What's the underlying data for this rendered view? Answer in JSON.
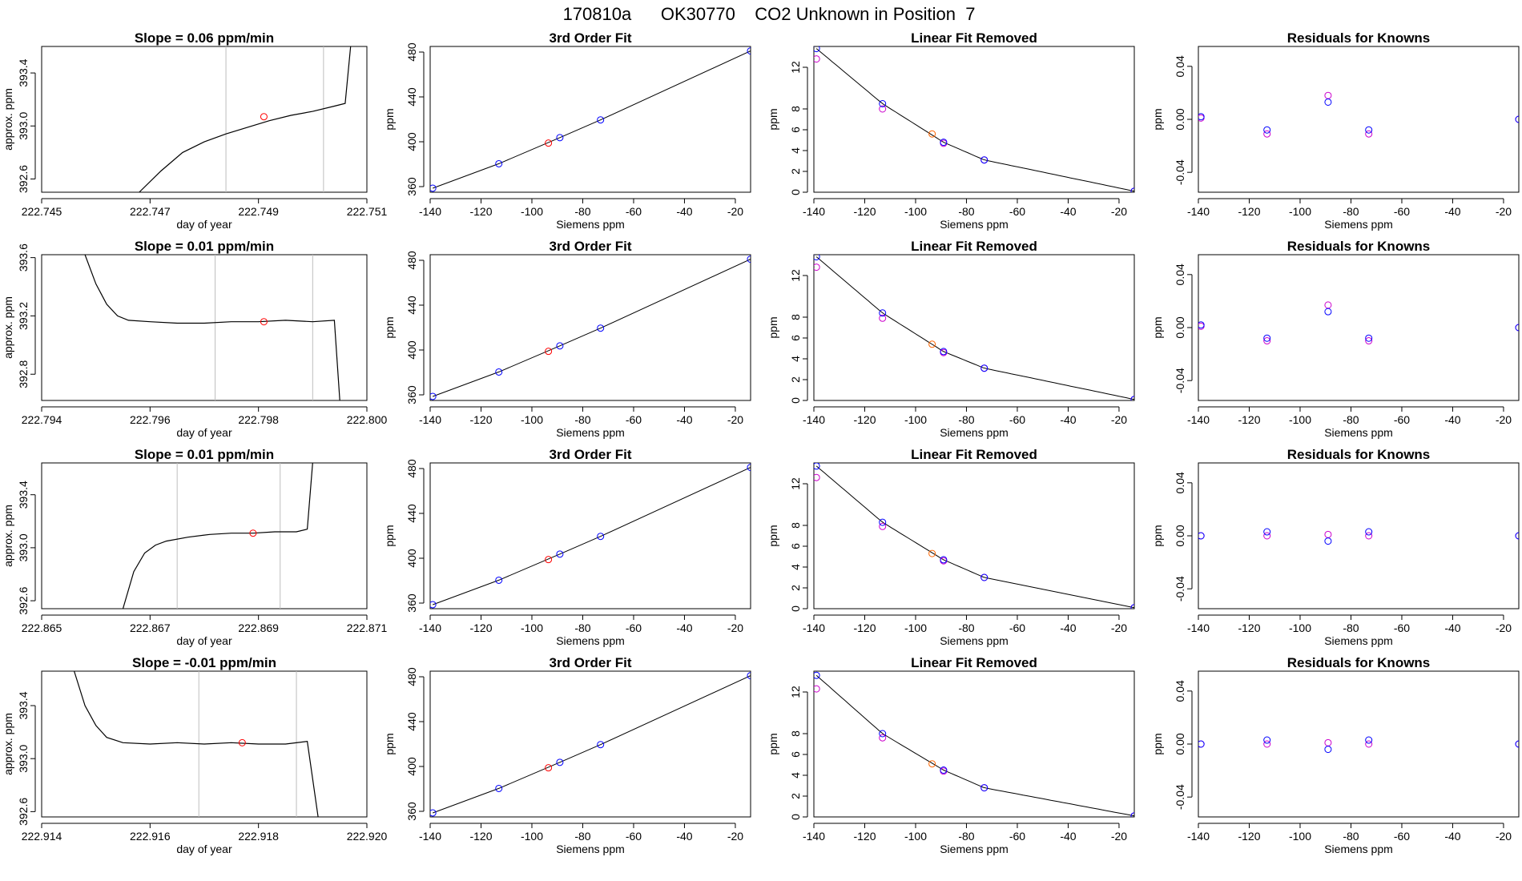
{
  "main_title": "170810a      OK30770    CO2 Unknown in Position  7",
  "colors": {
    "known": "#0000ff",
    "fitted": "#cc00cc",
    "unknown_fit": "#ff0000",
    "unknown_lin": "#ff6600",
    "gray": "#bebebe",
    "trace": "#000000"
  },
  "chart_data": [
    {
      "type": "line",
      "row": 0,
      "col": 0,
      "title": "Slope =  0.06  ppm/min",
      "xlabel": "day of year",
      "ylabel": "approx. ppm",
      "xlim": [
        222.745,
        222.751
      ],
      "ylim": [
        392.5,
        393.6
      ],
      "xticks": [
        222.745,
        222.747,
        222.749,
        222.751
      ],
      "xticklabels": [
        "222.745",
        "222.747",
        "222.749",
        "222.751"
      ],
      "yticks": [
        392.6,
        393.0,
        393.4
      ],
      "yticklabels": [
        "392.6",
        "393.0",
        "393.4"
      ],
      "vlines": [
        222.7484,
        222.7502
      ],
      "trace": [
        [
          222.7468,
          392.5
        ],
        [
          222.7472,
          392.66
        ],
        [
          222.7476,
          392.8
        ],
        [
          222.748,
          392.88
        ],
        [
          222.7484,
          392.94
        ],
        [
          222.7488,
          392.99
        ],
        [
          222.7492,
          393.04
        ],
        [
          222.7496,
          393.08
        ],
        [
          222.75,
          393.11
        ],
        [
          222.7504,
          393.15
        ],
        [
          222.7506,
          393.17
        ],
        [
          222.7507,
          393.6
        ]
      ],
      "marker": [
        222.7491,
        393.07
      ]
    },
    {
      "type": "scatter",
      "row": 0,
      "col": 1,
      "title": "3rd Order Fit",
      "xlabel": "Siemens ppm",
      "ylabel": "ppm",
      "xlim": [
        -140,
        -14
      ],
      "ylim": [
        355,
        485
      ],
      "xticks": [
        -140,
        -120,
        -100,
        -80,
        -60,
        -40,
        -20
      ],
      "yticks": [
        360,
        400,
        440,
        480
      ],
      "knowns_x": [
        -139.0,
        -113.0,
        -89.0,
        -73.0,
        -14.0
      ],
      "knowns_y": [
        358.6,
        380.4,
        403.7,
        419.5,
        481.0
      ],
      "unknown": [
        -93.5,
        398.8
      ]
    },
    {
      "type": "scatter",
      "row": 0,
      "col": 2,
      "title": "Linear Fit Removed",
      "xlabel": "Siemens ppm",
      "ylabel": "ppm",
      "xlim": [
        -140,
        -14
      ],
      "ylim": [
        0,
        14
      ],
      "xticks": [
        -140,
        -120,
        -100,
        -80,
        -60,
        -40,
        -20
      ],
      "yticks": [
        0,
        2,
        4,
        6,
        8,
        12
      ],
      "knowns_x": [
        -139.0,
        -113.0,
        -89.0,
        -73.0,
        -14.0
      ],
      "knowns_y": [
        13.8,
        8.5,
        4.8,
        3.1,
        0.1
      ],
      "fitted_y": [
        12.8,
        8.0,
        4.7,
        3.1,
        0.1
      ],
      "unknown": [
        -93.5,
        5.6
      ]
    },
    {
      "type": "scatter",
      "row": 0,
      "col": 3,
      "title": "Residuals for Knowns",
      "xlabel": "Siemens ppm",
      "ylabel": "ppm",
      "xlim": [
        -140,
        -14
      ],
      "ylim": [
        -0.055,
        0.055
      ],
      "xticks": [
        -140,
        -120,
        -100,
        -80,
        -60,
        -40,
        -20
      ],
      "yticks": [
        -0.04,
        0.0,
        0.04
      ],
      "yticklabels": [
        "-0.04",
        "0.00",
        "0.04"
      ],
      "knowns_x": [
        -139.0,
        -113.0,
        -89.0,
        -73.0,
        -14.0
      ],
      "knowns_y": [
        0.002,
        -0.008,
        0.013,
        -0.008,
        0.0
      ],
      "fitted_y": [
        0.001,
        -0.011,
        0.018,
        -0.011,
        0.0
      ]
    },
    {
      "type": "line",
      "row": 1,
      "col": 0,
      "title": "Slope =  0.01  ppm/min",
      "xlabel": "day of year",
      "ylabel": "approx. ppm",
      "xlim": [
        222.794,
        222.8
      ],
      "ylim": [
        392.62,
        393.62
      ],
      "xticks": [
        222.794,
        222.796,
        222.798,
        222.8
      ],
      "xticklabels": [
        "222.794",
        "222.796",
        "222.798",
        "222.800"
      ],
      "yticks": [
        392.8,
        393.2,
        393.6
      ],
      "yticklabels": [
        "392.8",
        "393.2",
        "393.6"
      ],
      "vlines": [
        222.7972,
        222.799
      ],
      "trace": [
        [
          222.7948,
          393.62
        ],
        [
          222.795,
          393.42
        ],
        [
          222.7952,
          393.28
        ],
        [
          222.7954,
          393.2
        ],
        [
          222.7956,
          393.17
        ],
        [
          222.796,
          393.16
        ],
        [
          222.7965,
          393.15
        ],
        [
          222.797,
          393.15
        ],
        [
          222.7975,
          393.16
        ],
        [
          222.798,
          393.16
        ],
        [
          222.7985,
          393.17
        ],
        [
          222.799,
          393.16
        ],
        [
          222.7994,
          393.17
        ],
        [
          222.7995,
          392.62
        ]
      ],
      "marker": [
        222.7981,
        393.16
      ]
    },
    {
      "type": "scatter",
      "row": 1,
      "col": 1,
      "title": "3rd Order Fit",
      "xlabel": "Siemens ppm",
      "ylabel": "ppm",
      "xlim": [
        -140,
        -14
      ],
      "ylim": [
        355,
        485
      ],
      "xticks": [
        -140,
        -120,
        -100,
        -80,
        -60,
        -40,
        -20
      ],
      "yticks": [
        360,
        400,
        440,
        480
      ],
      "knowns_x": [
        -139.0,
        -113.0,
        -89.0,
        -73.0,
        -14.0
      ],
      "knowns_y": [
        358.6,
        380.4,
        403.7,
        419.5,
        481.0
      ],
      "unknown": [
        -93.5,
        398.8
      ]
    },
    {
      "type": "scatter",
      "row": 1,
      "col": 2,
      "title": "Linear Fit Removed",
      "xlabel": "Siemens ppm",
      "ylabel": "ppm",
      "xlim": [
        -140,
        -14
      ],
      "ylim": [
        0,
        14
      ],
      "xticks": [
        -140,
        -120,
        -100,
        -80,
        -60,
        -40,
        -20
      ],
      "yticks": [
        0,
        2,
        4,
        6,
        8,
        12
      ],
      "knowns_x": [
        -139.0,
        -113.0,
        -89.0,
        -73.0,
        -14.0
      ],
      "knowns_y": [
        13.8,
        8.4,
        4.7,
        3.1,
        0.1
      ],
      "fitted_y": [
        12.8,
        7.9,
        4.6,
        3.1,
        0.1
      ],
      "unknown": [
        -93.5,
        5.4
      ]
    },
    {
      "type": "scatter",
      "row": 1,
      "col": 3,
      "title": "Residuals for Knowns",
      "xlabel": "Siemens ppm",
      "ylabel": "ppm",
      "xlim": [
        -140,
        -14
      ],
      "ylim": [
        -0.055,
        0.055
      ],
      "xticks": [
        -140,
        -120,
        -100,
        -80,
        -60,
        -40,
        -20
      ],
      "yticks": [
        -0.04,
        0.0,
        0.04
      ],
      "yticklabels": [
        "-0.04",
        "0.00",
        "0.04"
      ],
      "knowns_x": [
        -139.0,
        -113.0,
        -89.0,
        -73.0,
        -14.0
      ],
      "knowns_y": [
        0.002,
        -0.008,
        0.012,
        -0.008,
        0.0
      ],
      "fitted_y": [
        0.001,
        -0.01,
        0.017,
        -0.01,
        0.0
      ]
    },
    {
      "type": "line",
      "row": 2,
      "col": 0,
      "title": "Slope =  0.01  ppm/min",
      "xlabel": "day of year",
      "ylabel": "approx. ppm",
      "xlim": [
        222.865,
        222.871
      ],
      "ylim": [
        392.54,
        393.64
      ],
      "xticks": [
        222.865,
        222.867,
        222.869,
        222.871
      ],
      "xticklabels": [
        "222.865",
        "222.867",
        "222.869",
        "222.871"
      ],
      "yticks": [
        392.6,
        393.0,
        393.4
      ],
      "yticklabels": [
        "392.6",
        "393.0",
        "393.4"
      ],
      "vlines": [
        222.8675,
        222.8694
      ],
      "trace": [
        [
          222.8665,
          392.54
        ],
        [
          222.8667,
          392.82
        ],
        [
          222.8669,
          392.96
        ],
        [
          222.8671,
          393.02
        ],
        [
          222.8673,
          393.05
        ],
        [
          222.8677,
          393.08
        ],
        [
          222.8681,
          393.1
        ],
        [
          222.8685,
          393.11
        ],
        [
          222.8689,
          393.11
        ],
        [
          222.8693,
          393.12
        ],
        [
          222.8697,
          393.12
        ],
        [
          222.8699,
          393.14
        ],
        [
          222.87,
          393.64
        ]
      ],
      "marker": [
        222.8689,
        393.11
      ]
    },
    {
      "type": "scatter",
      "row": 2,
      "col": 1,
      "title": "3rd Order Fit",
      "xlabel": "Siemens ppm",
      "ylabel": "ppm",
      "xlim": [
        -140,
        -14
      ],
      "ylim": [
        355,
        485
      ],
      "xticks": [
        -140,
        -120,
        -100,
        -80,
        -60,
        -40,
        -20
      ],
      "yticks": [
        360,
        400,
        440,
        480
      ],
      "knowns_x": [
        -139.0,
        -113.0,
        -89.0,
        -73.0,
        -14.0
      ],
      "knowns_y": [
        358.6,
        380.4,
        403.7,
        419.5,
        481.0
      ],
      "unknown": [
        -93.5,
        398.8
      ]
    },
    {
      "type": "scatter",
      "row": 2,
      "col": 2,
      "title": "Linear Fit Removed",
      "xlabel": "Siemens ppm",
      "ylabel": "ppm",
      "xlim": [
        -140,
        -14
      ],
      "ylim": [
        0,
        14
      ],
      "xticks": [
        -140,
        -120,
        -100,
        -80,
        -60,
        -40,
        -20
      ],
      "yticks": [
        0,
        2,
        4,
        6,
        8,
        12
      ],
      "knowns_x": [
        -139.0,
        -113.0,
        -89.0,
        -73.0,
        -14.0
      ],
      "knowns_y": [
        13.7,
        8.3,
        4.7,
        3.0,
        0.1
      ],
      "fitted_y": [
        12.6,
        7.9,
        4.6,
        3.0,
        0.1
      ],
      "unknown": [
        -93.5,
        5.3
      ]
    },
    {
      "type": "scatter",
      "row": 2,
      "col": 3,
      "title": "Residuals for Knowns",
      "xlabel": "Siemens ppm",
      "ylabel": "ppm",
      "xlim": [
        -140,
        -14
      ],
      "ylim": [
        -0.055,
        0.055
      ],
      "xticks": [
        -140,
        -120,
        -100,
        -80,
        -60,
        -40,
        -20
      ],
      "yticks": [
        -0.04,
        0.0,
        0.04
      ],
      "yticklabels": [
        "-0.04",
        "0.00",
        "0.04"
      ],
      "knowns_x": [
        -139.0,
        -113.0,
        -89.0,
        -73.0,
        -14.0
      ],
      "knowns_y": [
        0.0,
        0.003,
        -0.004,
        0.003,
        0.0
      ],
      "fitted_y": [
        0.0,
        0.0,
        0.001,
        0.0,
        0.0
      ]
    },
    {
      "type": "line",
      "row": 3,
      "col": 0,
      "title": "Slope =  -0.01  ppm/min",
      "xlabel": "day of year",
      "ylabel": "approx. ppm",
      "xlim": [
        222.914,
        222.92
      ],
      "ylim": [
        392.56,
        393.66
      ],
      "xticks": [
        222.914,
        222.916,
        222.918,
        222.92
      ],
      "xticklabels": [
        "222.914",
        "222.916",
        "222.918",
        "222.920"
      ],
      "yticks": [
        392.6,
        393.0,
        393.4
      ],
      "yticklabels": [
        "392.6",
        "393.0",
        "393.4"
      ],
      "vlines": [
        222.9169,
        222.9187
      ],
      "trace": [
        [
          222.9146,
          393.66
        ],
        [
          222.9148,
          393.4
        ],
        [
          222.915,
          393.25
        ],
        [
          222.9152,
          393.16
        ],
        [
          222.9155,
          393.12
        ],
        [
          222.916,
          393.11
        ],
        [
          222.9165,
          393.12
        ],
        [
          222.917,
          393.11
        ],
        [
          222.9175,
          393.12
        ],
        [
          222.918,
          393.11
        ],
        [
          222.9185,
          393.11
        ],
        [
          222.9189,
          393.13
        ],
        [
          222.9191,
          392.56
        ]
      ],
      "marker": [
        222.9177,
        393.12
      ]
    },
    {
      "type": "scatter",
      "row": 3,
      "col": 1,
      "title": "3rd Order Fit",
      "xlabel": "Siemens ppm",
      "ylabel": "ppm",
      "xlim": [
        -140,
        -14
      ],
      "ylim": [
        355,
        485
      ],
      "xticks": [
        -140,
        -120,
        -100,
        -80,
        -60,
        -40,
        -20
      ],
      "yticks": [
        360,
        400,
        440,
        480
      ],
      "knowns_x": [
        -139.0,
        -113.0,
        -89.0,
        -73.0,
        -14.0
      ],
      "knowns_y": [
        358.6,
        380.4,
        403.7,
        419.5,
        481.0
      ],
      "unknown": [
        -93.5,
        398.8
      ]
    },
    {
      "type": "scatter",
      "row": 3,
      "col": 2,
      "title": "Linear Fit Removed",
      "xlabel": "Siemens ppm",
      "ylabel": "ppm",
      "xlim": [
        -140,
        -14
      ],
      "ylim": [
        0,
        14
      ],
      "xticks": [
        -140,
        -120,
        -100,
        -80,
        -60,
        -40,
        -20
      ],
      "yticks": [
        0,
        2,
        4,
        6,
        8,
        12
      ],
      "knowns_x": [
        -139.0,
        -113.0,
        -89.0,
        -73.0,
        -14.0
      ],
      "knowns_y": [
        13.6,
        8.0,
        4.5,
        2.8,
        0.1
      ],
      "fitted_y": [
        12.3,
        7.6,
        4.4,
        2.8,
        0.1
      ],
      "unknown": [
        -93.5,
        5.1
      ]
    },
    {
      "type": "scatter",
      "row": 3,
      "col": 3,
      "title": "Residuals for Knowns",
      "xlabel": "Siemens ppm",
      "ylabel": "ppm",
      "xlim": [
        -140,
        -14
      ],
      "ylim": [
        -0.055,
        0.055
      ],
      "xticks": [
        -140,
        -120,
        -100,
        -80,
        -60,
        -40,
        -20
      ],
      "yticks": [
        -0.04,
        0.0,
        0.04
      ],
      "yticklabels": [
        "-0.04",
        "0.00",
        "0.04"
      ],
      "knowns_x": [
        -139.0,
        -113.0,
        -89.0,
        -73.0,
        -14.0
      ],
      "knowns_y": [
        0.0,
        0.003,
        -0.004,
        0.003,
        0.0
      ],
      "fitted_y": [
        0.0,
        0.0,
        0.001,
        0.0,
        0.0
      ]
    }
  ]
}
